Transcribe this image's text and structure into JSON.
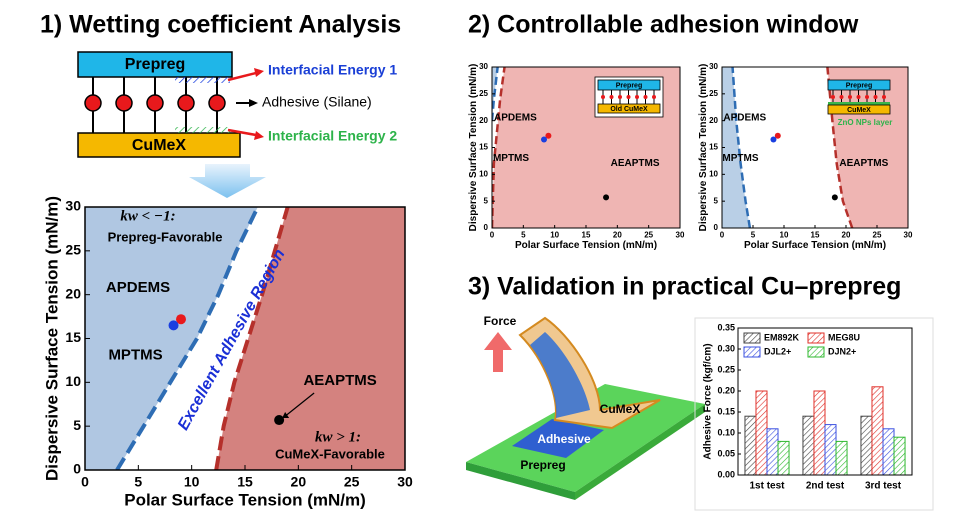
{
  "sections": [
    "1) Wetting coefficient Analysis",
    "2) Controllable adhesion window",
    "3) Validation in practical Cu–prepreg"
  ],
  "schematic": {
    "top": "Prepreg",
    "bottom": "CuMeX",
    "labels": [
      "Interfacial Energy 1",
      "Adhesive (Silane)",
      "Interfacial Energy 2"
    ]
  },
  "illustration": {
    "force": "Force",
    "cumex": "CuMeX",
    "adhesive": "Adhesive",
    "prepreg": "Prepreg"
  },
  "chart_data": [
    {
      "type": "scatter",
      "xlabel": "Polar Surface Tension (mN/m)",
      "ylabel": "Dispersive Surface Tension (mN/m)",
      "xlim": [
        0,
        30
      ],
      "ylim": [
        0,
        30
      ],
      "xticks": [
        0,
        5,
        10,
        15,
        20,
        25,
        30
      ],
      "yticks": [
        0,
        5,
        10,
        15,
        20,
        25,
        30
      ],
      "regions": [
        {
          "side": "left",
          "color": "#2e6db4",
          "fill": "#b0c7e2",
          "x": [
            3,
            5.5,
            8,
            10.5,
            12.5,
            14.2,
            16.2
          ],
          "values": [
            0,
            5,
            10,
            15,
            20,
            25,
            30
          ]
        },
        {
          "side": "right",
          "color": "#b5302b",
          "fill": "#d4827f",
          "x": [
            12.3,
            13,
            14,
            15.3,
            16.6,
            17.8,
            19
          ],
          "values": [
            0,
            5,
            10,
            15,
            20,
            25,
            30
          ]
        }
      ],
      "series": [
        {
          "name": "APDEMS",
          "color": "#e8191c",
          "x": [
            9
          ],
          "values": [
            17.2
          ]
        },
        {
          "name": "MPTMS",
          "color": "#1a3fe0",
          "x": [
            8.3
          ],
          "values": [
            16.5
          ]
        },
        {
          "name": "AEAPTMS",
          "color": "#000000",
          "x": [
            18.2
          ],
          "values": [
            5.7
          ]
        }
      ],
      "annotations": [
        "kw < −1:",
        "Prepreg-Favorable",
        "Excellent Adhesive Region",
        "kw > 1:",
        "CuMeX-Favorable"
      ]
    },
    {
      "type": "scatter",
      "xlabel": "Polar Surface Tension (mN/m)",
      "ylabel": "Dispersive Surface Tension (mN/m)",
      "xlim": [
        0,
        30
      ],
      "ylim": [
        0,
        30
      ],
      "xticks": [
        0,
        5,
        10,
        15,
        20,
        25,
        30
      ],
      "yticks": [
        0,
        5,
        10,
        15,
        20,
        25,
        30
      ],
      "regions": [
        {
          "side": "left",
          "color": "#2e6db4",
          "fill": "#b9cfe6",
          "x": [
            0,
            0.3,
            0.6,
            0.9
          ],
          "values": [
            20,
            24,
            27,
            30
          ]
        },
        {
          "side": "right",
          "color": "#b5302b",
          "fill": "#efb5b3",
          "x": [
            0,
            0.3,
            0.8,
            1.3,
            2
          ],
          "values": [
            0,
            12,
            18,
            24,
            30
          ]
        }
      ],
      "series": [
        {
          "name": "APDEMS",
          "color": "#e8191c",
          "x": [
            9
          ],
          "values": [
            17.2
          ]
        },
        {
          "name": "MPTMS",
          "color": "#1a3fe0",
          "x": [
            8.3
          ],
          "values": [
            16.5
          ]
        },
        {
          "name": "AEAPTMS",
          "color": "#000000",
          "x": [
            18.2
          ],
          "values": [
            5.7
          ]
        }
      ],
      "inset": [
        "Prepreg",
        "Old CuMeX"
      ]
    },
    {
      "type": "scatter",
      "xlabel": "Polar Surface Tension (mN/m)",
      "ylabel": "Dispersive Surface Tension (mN/m)",
      "xlim": [
        0,
        30
      ],
      "ylim": [
        0,
        30
      ],
      "xticks": [
        0,
        5,
        10,
        15,
        20,
        25,
        30
      ],
      "yticks": [
        0,
        5,
        10,
        15,
        20,
        25,
        30
      ],
      "regions": [
        {
          "side": "left",
          "color": "#2e6db4",
          "fill": "#b9cfe6",
          "x": [
            4.5,
            3.8,
            3,
            2.3,
            1.7
          ],
          "values": [
            0,
            5,
            12,
            20,
            30
          ]
        },
        {
          "side": "right",
          "color": "#b5302b",
          "fill": "#efb5b3",
          "x": [
            21,
            19.5,
            18.5,
            17.8,
            17
          ],
          "values": [
            0,
            5,
            12,
            20,
            30
          ]
        }
      ],
      "series": [
        {
          "name": "APDEMS",
          "color": "#e8191c",
          "x": [
            9
          ],
          "values": [
            17.2
          ]
        },
        {
          "name": "MPTMS",
          "color": "#1a3fe0",
          "x": [
            8.3
          ],
          "values": [
            16.5
          ]
        },
        {
          "name": "AEAPTMS",
          "color": "#000000",
          "x": [
            18.2
          ],
          "values": [
            5.7
          ]
        }
      ],
      "inset": [
        "Prepreg",
        "CuMeX",
        "ZnO NPs layer"
      ]
    },
    {
      "type": "bar",
      "ylabel": "Adhesive Force (kgf/cm)",
      "categories": [
        "1st test",
        "2nd test",
        "3rd test"
      ],
      "ylim": [
        0,
        0.35
      ],
      "yticks": [
        {
          "value": 0,
          "label": "0.00"
        },
        {
          "value": 0.05,
          "label": "0.05"
        },
        {
          "value": 0.1,
          "label": "0.10"
        },
        {
          "value": 0.15,
          "label": "0.15"
        },
        {
          "value": 0.2,
          "label": "0.20"
        },
        {
          "value": 0.25,
          "label": "0.25"
        },
        {
          "value": 0.3,
          "label": "0.30"
        },
        {
          "value": 0.35,
          "label": "0.35"
        }
      ],
      "hatch": true,
      "series": [
        {
          "name": "EM892K",
          "color": "#444444",
          "values": [
            0.14,
            0.14,
            0.14
          ]
        },
        {
          "name": "MEG8U",
          "color": "#e0302a",
          "values": [
            0.2,
            0.2,
            0.21
          ]
        },
        {
          "name": "DJL2+",
          "color": "#3b50e0",
          "values": [
            0.11,
            0.12,
            0.11
          ]
        },
        {
          "name": "DJN2+",
          "color": "#2eb82e",
          "values": [
            0.08,
            0.08,
            0.09
          ]
        }
      ]
    }
  ]
}
